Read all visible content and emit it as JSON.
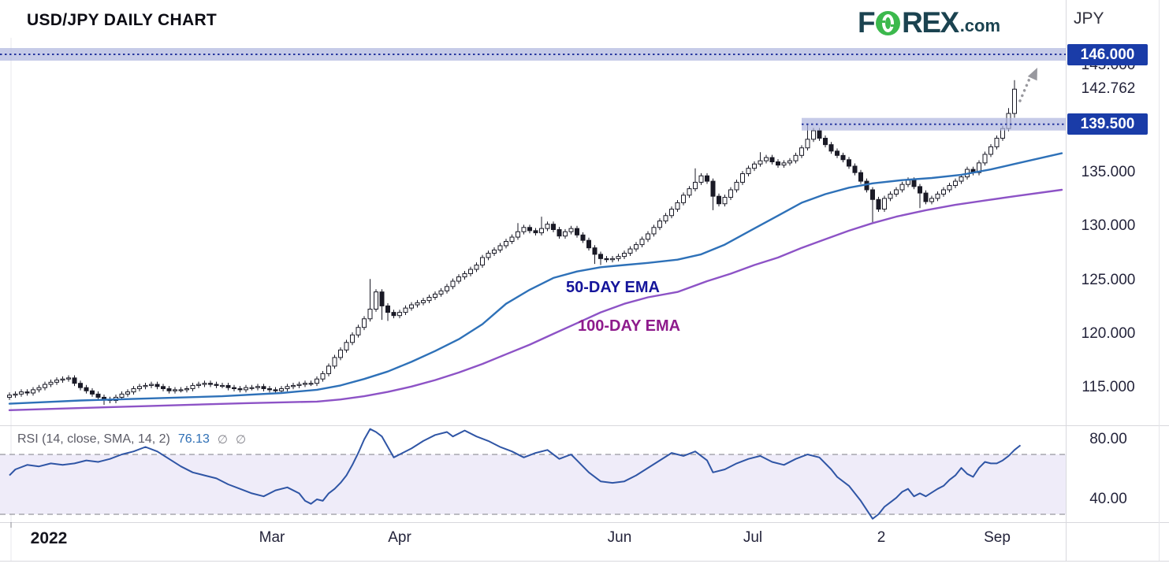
{
  "header": {
    "title": "USD/JPY DAILY CHART",
    "logo": {
      "part1": "F",
      "part2": "REX",
      "suffix": ".com",
      "teal": "#1b4350",
      "green": "#3cb94d"
    },
    "axis_currency": "JPY"
  },
  "colors": {
    "badge_bg": "#1a3ca8",
    "zone_fill": "#aeb5de",
    "zone_dotted_line": "#27379f",
    "ema50": "#2e71b8",
    "ema100": "#8d53c6",
    "rsi_line": "#2f55a5",
    "rsi_band_fill": "#efecf9",
    "rsi_band_border": "#97979f",
    "candle_dark": "#1a1a26",
    "divider": "#d8d8dd",
    "arrow": "#98989e"
  },
  "chart_data": {
    "type": "candlestick",
    "title": "USD/JPY DAILY CHART",
    "legend_position": "none",
    "grid": "off",
    "price_panel": {
      "ylim": [
        111.5,
        147.6
      ],
      "y_axis_ticks": [
        {
          "label": "146.000",
          "value": 146.0,
          "badge": true
        },
        {
          "label": "145.000",
          "value": 145.0,
          "badge": false
        },
        {
          "label": "142.762",
          "value": 142.762,
          "badge": false
        },
        {
          "label": "139.500",
          "value": 139.5,
          "badge": true
        },
        {
          "label": "135.000",
          "value": 135.0,
          "badge": false
        },
        {
          "label": "130.000",
          "value": 130.0,
          "badge": false
        },
        {
          "label": "125.000",
          "value": 125.0,
          "badge": false
        },
        {
          "label": "120.000",
          "value": 120.0,
          "badge": false
        },
        {
          "label": "115.000",
          "value": 115.0,
          "badge": false
        }
      ],
      "current_price": 142.762,
      "resistance_zones": [
        {
          "label": "146.000",
          "value": 146.0,
          "x_start": 0
        },
        {
          "label": "139.500",
          "value": 139.5,
          "x_start": 1017
        }
      ],
      "candles": {
        "closes": [
          114.3,
          114.4,
          114.6,
          114.5,
          114.8,
          115.0,
          115.3,
          115.5,
          115.7,
          115.8,
          115.9,
          115.4,
          115.0,
          114.7,
          114.4,
          114.1,
          113.9,
          113.8,
          114.1,
          114.4,
          114.6,
          114.9,
          115.1,
          115.2,
          115.3,
          115.1,
          114.9,
          114.7,
          114.8,
          114.8,
          114.9,
          115.2,
          115.3,
          115.4,
          115.3,
          115.2,
          115.2,
          115.0,
          114.9,
          114.8,
          115.0,
          115.0,
          115.1,
          114.9,
          114.8,
          114.7,
          114.9,
          115.1,
          115.2,
          115.3,
          115.4,
          115.4,
          115.8,
          116.3,
          117.0,
          117.8,
          118.5,
          119.2,
          119.9,
          120.6,
          121.4,
          122.3,
          123.9,
          122.6,
          122.0,
          121.7,
          122.0,
          122.4,
          122.7,
          122.9,
          123.1,
          123.4,
          123.7,
          124.0,
          124.4,
          124.9,
          125.3,
          125.6,
          126.0,
          126.4,
          127.1,
          127.5,
          127.8,
          128.2,
          128.6,
          129.0,
          129.5,
          129.9,
          129.6,
          129.4,
          129.8,
          130.2,
          129.7,
          129.1,
          129.5,
          129.8,
          129.2,
          128.7,
          128.0,
          127.4,
          127.0,
          126.9,
          127.0,
          127.2,
          127.5,
          127.9,
          128.3,
          128.8,
          129.3,
          129.9,
          130.5,
          131.0,
          131.6,
          132.2,
          132.9,
          133.5,
          134.1,
          134.7,
          134.2,
          132.8,
          132.1,
          132.7,
          133.4,
          134.1,
          134.9,
          135.4,
          135.8,
          136.1,
          136.4,
          136.0,
          135.7,
          135.9,
          136.1,
          136.6,
          137.3,
          138.1,
          138.9,
          138.2,
          137.6,
          137.0,
          136.6,
          136.2,
          135.6,
          135.0,
          134.2,
          133.4,
          132.5,
          131.6,
          132.6,
          133.0,
          133.4,
          133.9,
          134.3,
          133.7,
          133.1,
          132.3,
          132.6,
          133.0,
          133.4,
          133.8,
          134.2,
          134.6,
          135.3,
          135.0,
          135.9,
          136.7,
          137.4,
          138.2,
          139.1,
          140.5,
          142.76
        ],
        "first_open": 114.1,
        "wick_overrides": {
          "16": {
            "l": 113.4
          },
          "61": {
            "h": 125.1
          },
          "63": {
            "l": 121.3
          },
          "64": {
            "l": 121.2
          },
          "86": {
            "h": 130.3
          },
          "90": {
            "h": 130.9
          },
          "99": {
            "l": 126.5
          },
          "100": {
            "l": 126.4
          },
          "116": {
            "h": 135.4
          },
          "119": {
            "l": 131.5
          },
          "127": {
            "h": 136.9
          },
          "135": {
            "h": 139.45
          },
          "146": {
            "l": 130.4
          },
          "154": {
            "l": 131.7
          },
          "169": {
            "h": 141.0
          },
          "170": {
            "h": 143.6,
            "l": 140.1
          }
        }
      },
      "ema50": {
        "name": "50-DAY EMA",
        "points": [
          [
            0,
            113.5
          ],
          [
            12,
            113.8
          ],
          [
            24,
            114.0
          ],
          [
            36,
            114.2
          ],
          [
            46,
            114.5
          ],
          [
            52,
            114.8
          ],
          [
            56,
            115.2
          ],
          [
            60,
            115.8
          ],
          [
            64,
            116.5
          ],
          [
            68,
            117.4
          ],
          [
            72,
            118.4
          ],
          [
            76,
            119.5
          ],
          [
            80,
            120.9
          ],
          [
            84,
            122.8
          ],
          [
            88,
            124.1
          ],
          [
            92,
            125.2
          ],
          [
            96,
            125.8
          ],
          [
            100,
            126.2
          ],
          [
            104,
            126.4
          ],
          [
            108,
            126.6
          ],
          [
            113,
            126.9
          ],
          [
            117,
            127.4
          ],
          [
            121,
            128.3
          ],
          [
            126,
            129.8
          ],
          [
            130,
            131.0
          ],
          [
            134,
            132.2
          ],
          [
            138,
            133.0
          ],
          [
            142,
            133.6
          ],
          [
            146,
            134.0
          ],
          [
            151,
            134.3
          ],
          [
            156,
            134.5
          ],
          [
            161,
            134.8
          ],
          [
            166,
            135.3
          ],
          [
            170,
            135.8
          ],
          [
            178,
            136.8
          ]
        ]
      },
      "ema100": {
        "name": "100-DAY EMA",
        "points": [
          [
            0,
            112.9
          ],
          [
            12,
            113.1
          ],
          [
            24,
            113.3
          ],
          [
            40,
            113.55
          ],
          [
            52,
            113.7
          ],
          [
            56,
            113.9
          ],
          [
            60,
            114.2
          ],
          [
            64,
            114.6
          ],
          [
            68,
            115.1
          ],
          [
            72,
            115.7
          ],
          [
            76,
            116.4
          ],
          [
            80,
            117.2
          ],
          [
            84,
            118.1
          ],
          [
            88,
            119.0
          ],
          [
            92,
            120.0
          ],
          [
            96,
            121.0
          ],
          [
            100,
            122.0
          ],
          [
            104,
            122.8
          ],
          [
            108,
            123.4
          ],
          [
            113,
            123.9
          ],
          [
            118,
            124.9
          ],
          [
            122,
            125.6
          ],
          [
            126,
            126.4
          ],
          [
            130,
            127.1
          ],
          [
            134,
            128.0
          ],
          [
            138,
            128.8
          ],
          [
            142,
            129.6
          ],
          [
            146,
            130.3
          ],
          [
            150,
            130.9
          ],
          [
            155,
            131.5
          ],
          [
            160,
            132.0
          ],
          [
            165,
            132.4
          ],
          [
            170,
            132.8
          ],
          [
            178,
            133.4
          ]
        ]
      }
    },
    "rsi_panel": {
      "legend": {
        "label": "RSI (14, close, SMA, 14, 2)",
        "value": "76.13",
        "icons": [
          "∅",
          "∅"
        ]
      },
      "y_axis_ticks": [
        {
          "label": "80.00",
          "value": 80
        },
        {
          "label": "40.00",
          "value": 40
        }
      ],
      "band_levels": [
        30,
        70
      ],
      "ylim": [
        20,
        95
      ],
      "points": [
        [
          0,
          56
        ],
        [
          1,
          60
        ],
        [
          3,
          63
        ],
        [
          5,
          62
        ],
        [
          7,
          64
        ],
        [
          9,
          63
        ],
        [
          11,
          64
        ],
        [
          13,
          66
        ],
        [
          15,
          65
        ],
        [
          17,
          67
        ],
        [
          19,
          70
        ],
        [
          21,
          72
        ],
        [
          23,
          75
        ],
        [
          25,
          72
        ],
        [
          27,
          67
        ],
        [
          29,
          62
        ],
        [
          31,
          58
        ],
        [
          33,
          56
        ],
        [
          35,
          54
        ],
        [
          37,
          50
        ],
        [
          39,
          47
        ],
        [
          41,
          44
        ],
        [
          43,
          42
        ],
        [
          45,
          46
        ],
        [
          47,
          48
        ],
        [
          49,
          44
        ],
        [
          50,
          39
        ],
        [
          51,
          37
        ],
        [
          52,
          40
        ],
        [
          53,
          39
        ],
        [
          54,
          44
        ],
        [
          55,
          47
        ],
        [
          56,
          51
        ],
        [
          57,
          56
        ],
        [
          58,
          63
        ],
        [
          59,
          71
        ],
        [
          60,
          80
        ],
        [
          61,
          87
        ],
        [
          62,
          85
        ],
        [
          63,
          82
        ],
        [
          64,
          75
        ],
        [
          65,
          68
        ],
        [
          66,
          70
        ],
        [
          68,
          74
        ],
        [
          70,
          79
        ],
        [
          72,
          83
        ],
        [
          74,
          85
        ],
        [
          75,
          82
        ],
        [
          77,
          86
        ],
        [
          79,
          82
        ],
        [
          81,
          79
        ],
        [
          83,
          75
        ],
        [
          85,
          72
        ],
        [
          87,
          68
        ],
        [
          89,
          71
        ],
        [
          91,
          73
        ],
        [
          93,
          67
        ],
        [
          95,
          70
        ],
        [
          96,
          66
        ],
        [
          98,
          58
        ],
        [
          100,
          52
        ],
        [
          102,
          51
        ],
        [
          104,
          52
        ],
        [
          106,
          56
        ],
        [
          108,
          61
        ],
        [
          110,
          66
        ],
        [
          112,
          71
        ],
        [
          114,
          69
        ],
        [
          116,
          72
        ],
        [
          118,
          66
        ],
        [
          119,
          58
        ],
        [
          121,
          60
        ],
        [
          123,
          64
        ],
        [
          125,
          67
        ],
        [
          127,
          69
        ],
        [
          129,
          65
        ],
        [
          131,
          63
        ],
        [
          133,
          67
        ],
        [
          135,
          70
        ],
        [
          137,
          68
        ],
        [
          139,
          60
        ],
        [
          140,
          55
        ],
        [
          142,
          49
        ],
        [
          143,
          44
        ],
        [
          144,
          39
        ],
        [
          145,
          33
        ],
        [
          146,
          27
        ],
        [
          147,
          30
        ],
        [
          148,
          35
        ],
        [
          149,
          38
        ],
        [
          150,
          41
        ],
        [
          151,
          45
        ],
        [
          152,
          47
        ],
        [
          153,
          42
        ],
        [
          154,
          44
        ],
        [
          155,
          42
        ],
        [
          157,
          47
        ],
        [
          158,
          49
        ],
        [
          159,
          53
        ],
        [
          160,
          56
        ],
        [
          161,
          61
        ],
        [
          162,
          57
        ],
        [
          163,
          55
        ],
        [
          164,
          61
        ],
        [
          165,
          65
        ],
        [
          166,
          64
        ],
        [
          167,
          64
        ],
        [
          168,
          66
        ],
        [
          169,
          69
        ],
        [
          170,
          73
        ],
        [
          171,
          76.13
        ]
      ]
    },
    "x_axis": {
      "labels": [
        {
          "text": "2022",
          "x": 62,
          "bold": true
        },
        {
          "text": "Mar",
          "x": 345,
          "bold": false
        },
        {
          "text": "Apr",
          "x": 507,
          "bold": false
        },
        {
          "text": "Jun",
          "x": 786,
          "bold": false
        },
        {
          "text": "Jul",
          "x": 955,
          "bold": false
        },
        {
          "text": "2",
          "x": 1118,
          "bold": false
        },
        {
          "text": "Sep",
          "x": 1265,
          "bold": false
        }
      ]
    }
  }
}
